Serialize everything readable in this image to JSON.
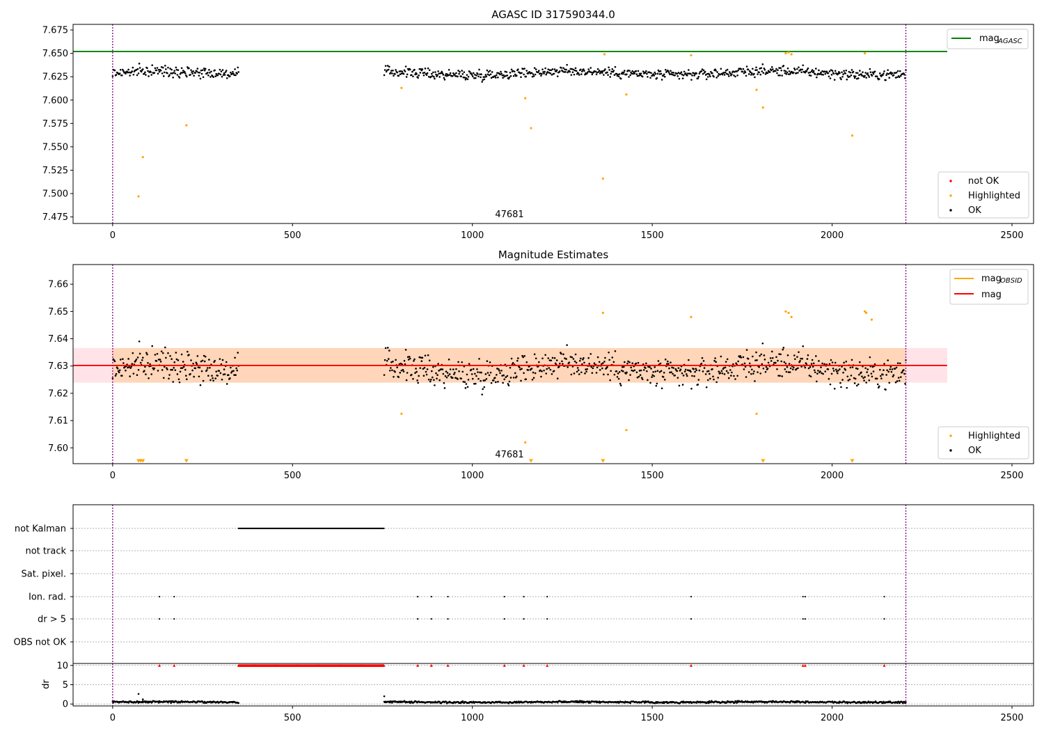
{
  "chart_data": [
    {
      "type": "scatter",
      "title": "AGASC ID 317590344.0",
      "xlim": [
        -110,
        2560
      ],
      "ylim": [
        7.468,
        7.681
      ],
      "xticks": [
        0,
        500,
        1000,
        1500,
        2000,
        2500
      ],
      "yticks": [
        7.475,
        7.5,
        7.525,
        7.55,
        7.575,
        7.6,
        7.625,
        7.65,
        7.675
      ],
      "ytick_labels": [
        "7.475",
        "7.500",
        "7.525",
        "7.550",
        "7.575",
        "7.600",
        "7.625",
        "7.650",
        "7.675"
      ],
      "vlines": [
        0,
        2205
      ],
      "hline": {
        "name": "mag_AGASC",
        "value": 7.652,
        "color": "#008000",
        "x_range": [
          -110,
          2320
        ]
      },
      "obsid_label": {
        "text": "47681",
        "x": 1103,
        "y": 7.47
      },
      "ok_segments": [
        {
          "x0": 0,
          "x1": 350,
          "center": 7.629,
          "spread": 0.006
        },
        {
          "x0": 755,
          "x1": 2205,
          "center": 7.629,
          "spread": 0.006
        }
      ],
      "highlighted_points": {
        "x": [
          72,
          84,
          205,
          803,
          1147,
          1163,
          1363,
          1367,
          1428,
          1608,
          1790,
          1808,
          1871,
          1879,
          1887,
          2056,
          2091
        ],
        "y": [
          7.497,
          7.539,
          7.573,
          7.613,
          7.602,
          7.57,
          7.516,
          7.649,
          7.606,
          7.648,
          7.611,
          7.592,
          7.65,
          7.651,
          7.649,
          7.562,
          7.65
        ]
      },
      "legend": {
        "placement": "lower right",
        "items": [
          {
            "label": "not OK",
            "color": "#ff0000"
          },
          {
            "label": "Highlighted",
            "color": "#ffa500"
          },
          {
            "label": "OK",
            "color": "#000000"
          }
        ]
      },
      "legend_upper": {
        "placement": "upper right",
        "items": [
          {
            "label": "mag",
            "sub": "AGASC",
            "color": "#008000"
          }
        ]
      }
    },
    {
      "type": "scatter",
      "title": "Magnitude Estimates",
      "xlim": [
        -110,
        2560
      ],
      "ylim": [
        7.5942,
        7.6672
      ],
      "xticks": [
        0,
        500,
        1000,
        1500,
        2000,
        2500
      ],
      "yticks": [
        7.6,
        7.61,
        7.62,
        7.63,
        7.64,
        7.65,
        7.66
      ],
      "ytick_labels": [
        "7.60",
        "7.61",
        "7.62",
        "7.63",
        "7.64",
        "7.65",
        "7.66"
      ],
      "vlines": [
        0,
        2205
      ],
      "mean_line": {
        "name": "mag",
        "value": 7.6302,
        "color": "#ff0000",
        "x_range": [
          -110,
          2320
        ]
      },
      "band": {
        "low": 7.6239,
        "high": 7.6366,
        "x_range": [
          -110,
          2320
        ]
      },
      "obsid_band": {
        "low": 7.6239,
        "high": 7.6366,
        "x_range": [
          0,
          2205
        ]
      },
      "obsid_label": {
        "text": "47681",
        "x": 1103,
        "y": 7.5962
      },
      "ok_segments": [
        {
          "x0": 0,
          "x1": 350,
          "center": 7.629,
          "spread": 0.006
        },
        {
          "x0": 755,
          "x1": 2205,
          "center": 7.629,
          "spread": 0.006
        }
      ],
      "highlighted_points": {
        "x": [
          803,
          1147,
          1363,
          1428,
          1608,
          1790,
          1871,
          1879,
          1887,
          2091,
          2095,
          2110
        ],
        "y": [
          7.6125,
          7.602,
          7.6495,
          7.6065,
          7.648,
          7.6125,
          7.65,
          7.6495,
          7.648,
          7.65,
          7.6495,
          7.647
        ]
      },
      "lower_markers_x": [
        72,
        78,
        84,
        205,
        1163,
        1363,
        1808,
        2056
      ],
      "legend": {
        "placement": "lower right",
        "items": [
          {
            "label": "Highlighted",
            "color": "#ffa500"
          },
          {
            "label": "OK",
            "color": "#000000"
          }
        ]
      },
      "legend_upper": {
        "placement": "upper right",
        "items": [
          {
            "label": "mag",
            "sub": "OBSID",
            "color": "#ffa500"
          },
          {
            "label": "mag",
            "color": "#ff0000"
          }
        ]
      }
    },
    {
      "type": "scatter",
      "title": "",
      "xlim": [
        -110,
        2560
      ],
      "flag_rows": [
        {
          "label": "not Kalman",
          "x": "range:350-755"
        },
        {
          "label": "not track",
          "x": []
        },
        {
          "label": "Sat. pixel.",
          "x": []
        },
        {
          "label": "Ion. rad.",
          "x": [
            130,
            171,
            848,
            886,
            932,
            1089,
            1143,
            1208,
            1608,
            1919,
            1925,
            2145
          ]
        },
        {
          "label": "dr > 5",
          "x": [
            130,
            171,
            848,
            886,
            932,
            1089,
            1143,
            1208,
            1608,
            1919,
            1925,
            2145
          ]
        },
        {
          "label": "OBS not OK",
          "x": []
        }
      ]
    },
    {
      "type": "scatter",
      "title": "",
      "ylabel": "dr",
      "xlim": [
        -110,
        2560
      ],
      "ylim": [
        -0.5,
        10.5
      ],
      "xticks": [
        0,
        500,
        1000,
        1500,
        2000,
        2500
      ],
      "yticks": [
        0,
        5,
        10
      ],
      "vlines": [
        0,
        2205
      ],
      "clipped_markers_x": [
        130,
        171,
        "range:350-755",
        848,
        886,
        932,
        1089,
        1143,
        1208,
        1608,
        1919,
        1925,
        2145
      ],
      "ok_segments": [
        {
          "x0": 0,
          "x1": 350,
          "center": 0.5,
          "spread": 0.25
        },
        {
          "x0": 755,
          "x1": 2205,
          "center": 0.5,
          "spread": 0.25
        }
      ],
      "extra_points": {
        "x": [
          72,
          84,
          755
        ],
        "y": [
          2.6,
          1.2,
          2.0
        ]
      }
    }
  ]
}
